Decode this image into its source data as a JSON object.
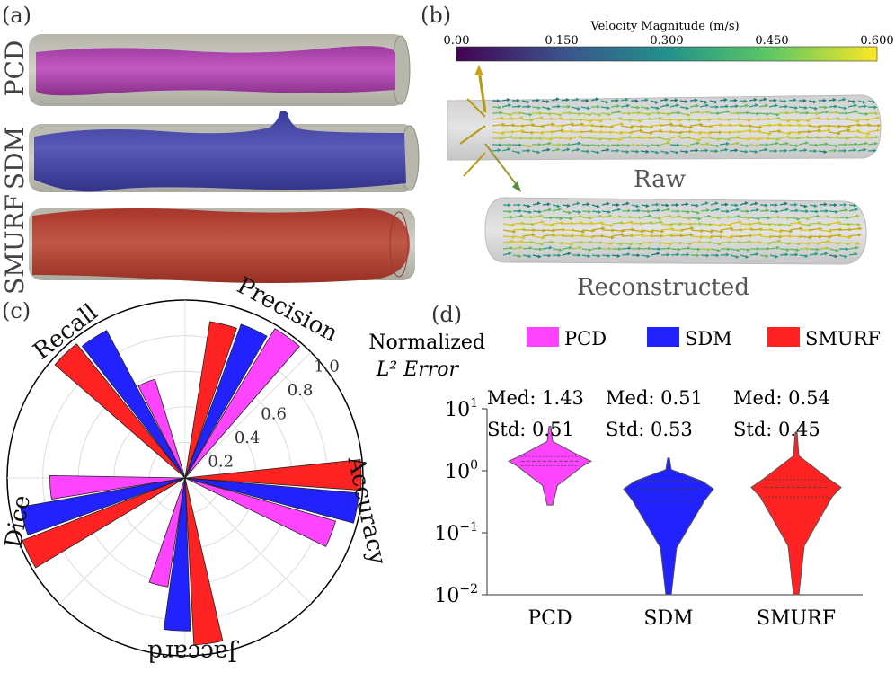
{
  "panel_labels": {
    "a": "(a)",
    "b": "(b)",
    "c": "(c)",
    "d": "(d)"
  },
  "panel_a": {
    "rows": [
      {
        "label": "PCD",
        "color": "#cc44cc"
      },
      {
        "label": "SDM",
        "color": "#4444bb"
      },
      {
        "label": "SMURF",
        "color": "#c84a3c"
      }
    ]
  },
  "panel_b": {
    "colorbar": {
      "title": "Velocity Magnitude (m/s)",
      "ticks": [
        "0.00",
        "0.150",
        "0.300",
        "0.450",
        "0.600"
      ],
      "stops": [
        "#440154",
        "#3b528b",
        "#21918c",
        "#5ec962",
        "#fde725"
      ]
    },
    "labels": {
      "raw": "Raw",
      "reconstructed": "Reconstructed"
    }
  },
  "chart_data": [
    {
      "type": "polar-bar",
      "panel": "c",
      "categories": [
        "Precision",
        "Accuracy",
        "Jaccard",
        "Dice",
        "Recall"
      ],
      "series": [
        {
          "name": "PCD",
          "color": "#ff44ff",
          "values": [
            0.98,
            0.88,
            0.62,
            0.76,
            0.58
          ]
        },
        {
          "name": "SDM",
          "color": "#2222ff",
          "values": [
            0.92,
            0.98,
            0.86,
            0.94,
            0.94
          ]
        },
        {
          "name": "SMURF",
          "color": "#ff2222",
          "values": [
            0.89,
            0.99,
            0.94,
            0.98,
            0.97
          ]
        }
      ],
      "radial_ticks": [
        "0.2",
        "0.4",
        "0.6",
        "0.8",
        "1.0"
      ],
      "rmax": 1.0
    },
    {
      "type": "violin",
      "panel": "d",
      "ylabel_line1": "Normalized",
      "ylabel_line2": "L² Error",
      "yscale": "log",
      "ylim": [
        0.01,
        10
      ],
      "yticks": [
        {
          "value": 10,
          "label": "10",
          "exp": "1"
        },
        {
          "value": 1,
          "label": "10",
          "exp": "0"
        },
        {
          "value": 0.1,
          "label": "10",
          "exp": "−1"
        },
        {
          "value": 0.01,
          "label": "10",
          "exp": "−2"
        }
      ],
      "categories": [
        "PCD",
        "SDM",
        "SMURF"
      ],
      "series": [
        {
          "name": "PCD",
          "color": "#ff44ff",
          "median": 1.43,
          "std": 0.51,
          "med_label": "Med:  1.43",
          "std_label": "Std: 0.51",
          "min": 0.28,
          "max": 5.2,
          "q1": 1.2,
          "q3": 1.7
        },
        {
          "name": "SDM",
          "color": "#2222ff",
          "median": 0.51,
          "std": 0.53,
          "med_label": "Med:  0.51",
          "std_label": "Std: 0.53",
          "min": 0.01,
          "max": 1.6,
          "q1": 0.33,
          "q3": 0.68
        },
        {
          "name": "SMURF",
          "color": "#ff2222",
          "median": 0.54,
          "std": 0.45,
          "med_label": "Med:  0.54",
          "std_label": "Std: 0.45",
          "min": 0.01,
          "max": 4.2,
          "q1": 0.38,
          "q3": 0.72
        }
      ]
    }
  ]
}
